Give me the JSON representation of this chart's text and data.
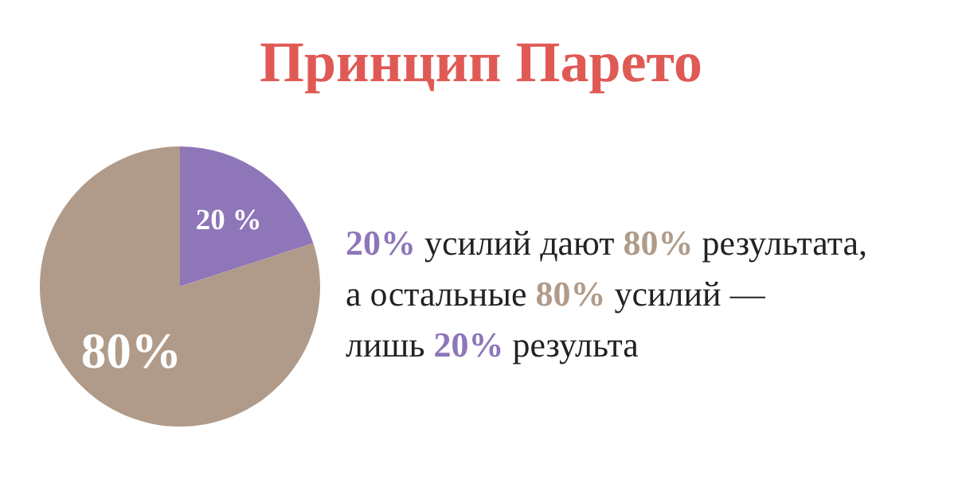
{
  "chart_data": {
    "type": "pie",
    "title": "Принцип Парето",
    "categories": [
      null,
      null
    ],
    "values": [
      20,
      80
    ],
    "colors": [
      "#8e76b9",
      "#b09b8a"
    ],
    "value_labels": [
      "20 %",
      "80%"
    ],
    "annotations": [
      "20% усилий дают 80% результата,\nа остальные 80% усилий —\nлишь 20% результа"
    ]
  }
}
